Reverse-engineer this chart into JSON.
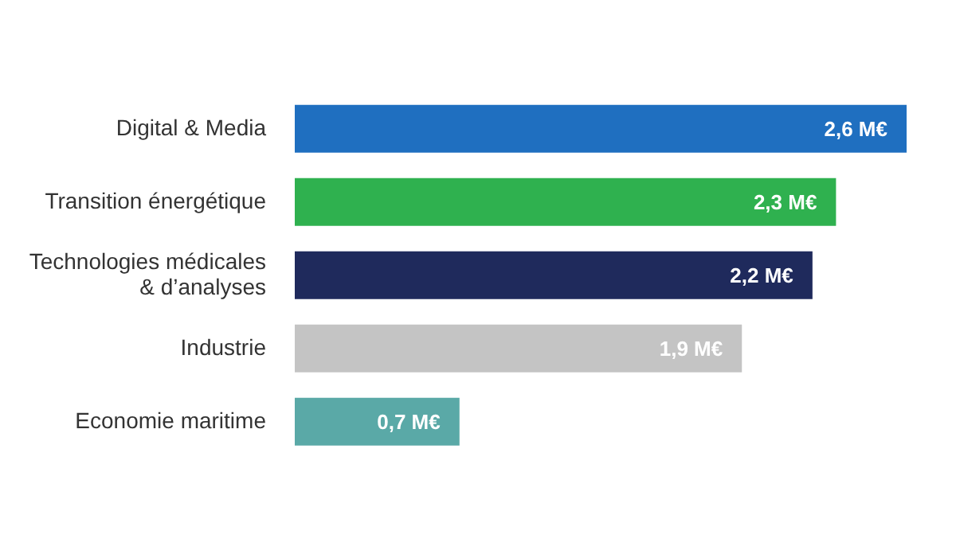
{
  "chart_data": {
    "type": "bar",
    "orientation": "horizontal",
    "categories": [
      "Digital & Media",
      "Transition énergétique",
      "Technologies médicales & d’analyses",
      "Industrie",
      "Economie maritime"
    ],
    "values": [
      2.6,
      2.3,
      2.2,
      1.9,
      0.7
    ],
    "value_labels": [
      "2,6 M€",
      "2,3 M€",
      "2,2 M€",
      "1,9 M€",
      "0,7 M€"
    ],
    "colors": [
      "#1f6fc0",
      "#2fb14f",
      "#1f2a5c",
      "#c4c4c4",
      "#5aa9a7"
    ],
    "relative": false,
    "grid": false,
    "legend": false
  }
}
